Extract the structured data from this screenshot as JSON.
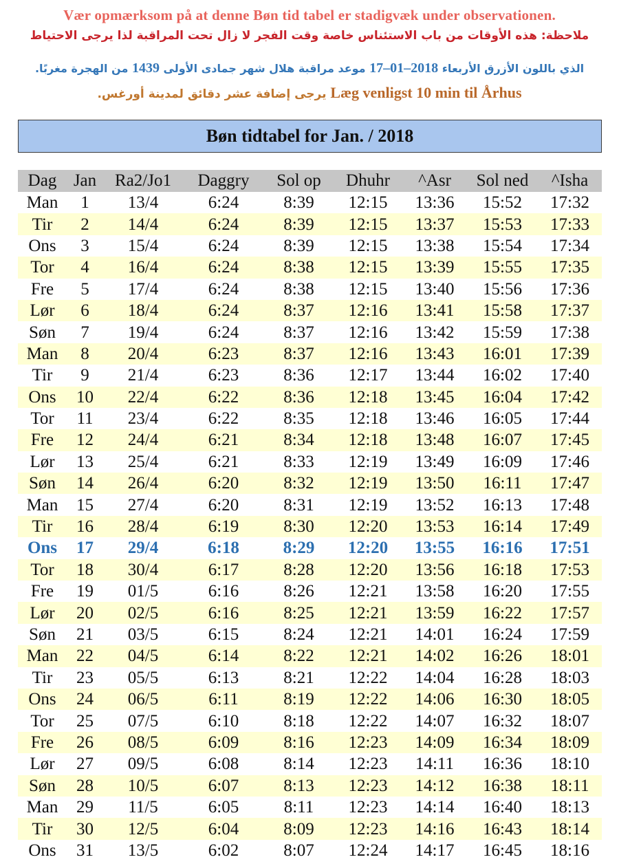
{
  "notes": {
    "danish_warning": "Vær opmærksom på at denne Bøn tid tabel er stadigvæk under observationen.",
    "arabic_warning": "ملاحظة: هذه الأوقات من باب الاستئناس خاصة وقت الفجر لا زال تحت المراقبة لذا يرجى الاحتياط",
    "moon_before": "الذي باللون الأزرق الأربعاء",
    "moon_date": "17–01–2018",
    "moon_middle": "موعد مراقبة هلال شهر جمادى الأولى",
    "moon_year": "1439",
    "moon_after": "من الهجرة مغربًا.",
    "aarhus_danish": "Læg venligst 10 min til Århus",
    "aarhus_arabic": "يرجى إضافة عشر دقائق لمدينة أورغس."
  },
  "title": "Bøn tidtabel for Jan. / 2018",
  "columns": [
    "Dag",
    "Jan",
    "Ra2/Jo1",
    "Daggry",
    "Sol op",
    "Dhuhr",
    "^Asr",
    "Sol ned",
    "^Isha"
  ],
  "highlight_color": "#2c6fb0",
  "rows": [
    [
      "Man",
      "1",
      "13/4",
      "6:24",
      "8:39",
      "12:15",
      "13:36",
      "15:52",
      "17:32"
    ],
    [
      "Tir",
      "2",
      "14/4",
      "6:24",
      "8:39",
      "12:15",
      "13:37",
      "15:53",
      "17:33"
    ],
    [
      "Ons",
      "3",
      "15/4",
      "6:24",
      "8:39",
      "12:15",
      "13:38",
      "15:54",
      "17:34"
    ],
    [
      "Tor",
      "4",
      "16/4",
      "6:24",
      "8:38",
      "12:15",
      "13:39",
      "15:55",
      "17:35"
    ],
    [
      "Fre",
      "5",
      "17/4",
      "6:24",
      "8:38",
      "12:15",
      "13:40",
      "15:56",
      "17:36"
    ],
    [
      "Lør",
      "6",
      "18/4",
      "6:24",
      "8:37",
      "12:16",
      "13:41",
      "15:58",
      "17:37"
    ],
    [
      "Søn",
      "7",
      "19/4",
      "6:24",
      "8:37",
      "12:16",
      "13:42",
      "15:59",
      "17:38"
    ],
    [
      "Man",
      "8",
      "20/4",
      "6:23",
      "8:37",
      "12:16",
      "13:43",
      "16:01",
      "17:39"
    ],
    [
      "Tir",
      "9",
      "21/4",
      "6:23",
      "8:36",
      "12:17",
      "13:44",
      "16:02",
      "17:40"
    ],
    [
      "Ons",
      "10",
      "22/4",
      "6:22",
      "8:36",
      "12:18",
      "13:45",
      "16:04",
      "17:42"
    ],
    [
      "Tor",
      "11",
      "23/4",
      "6:22",
      "8:35",
      "12:18",
      "13:46",
      "16:05",
      "17:44"
    ],
    [
      "Fre",
      "12",
      "24/4",
      "6:21",
      "8:34",
      "12:18",
      "13:48",
      "16:07",
      "17:45"
    ],
    [
      "Lør",
      "13",
      "25/4",
      "6:21",
      "8:33",
      "12:19",
      "13:49",
      "16:09",
      "17:46"
    ],
    [
      "Søn",
      "14",
      "26/4",
      "6:20",
      "8:32",
      "12:19",
      "13:50",
      "16:11",
      "17:47"
    ],
    [
      "Man",
      "15",
      "27/4",
      "6:20",
      "8:31",
      "12:19",
      "13:52",
      "16:13",
      "17:48"
    ],
    [
      "Tir",
      "16",
      "28/4",
      "6:19",
      "8:30",
      "12:20",
      "13:53",
      "16:14",
      "17:49"
    ],
    [
      "Ons",
      "17",
      "29/4",
      "6:18",
      "8:29",
      "12:20",
      "13:55",
      "16:16",
      "17:51"
    ],
    [
      "Tor",
      "18",
      "30/4",
      "6:17",
      "8:28",
      "12:20",
      "13:56",
      "16:18",
      "17:53"
    ],
    [
      "Fre",
      "19",
      "01/5",
      "6:16",
      "8:26",
      "12:21",
      "13:58",
      "16:20",
      "17:55"
    ],
    [
      "Lør",
      "20",
      "02/5",
      "6:16",
      "8:25",
      "12:21",
      "13:59",
      "16:22",
      "17:57"
    ],
    [
      "Søn",
      "21",
      "03/5",
      "6:15",
      "8:24",
      "12:21",
      "14:01",
      "16:24",
      "17:59"
    ],
    [
      "Man",
      "22",
      "04/5",
      "6:14",
      "8:22",
      "12:21",
      "14:02",
      "16:26",
      "18:01"
    ],
    [
      "Tir",
      "23",
      "05/5",
      "6:13",
      "8:21",
      "12:22",
      "14:04",
      "16:28",
      "18:03"
    ],
    [
      "Ons",
      "24",
      "06/5",
      "6:11",
      "8:19",
      "12:22",
      "14:06",
      "16:30",
      "18:05"
    ],
    [
      "Tor",
      "25",
      "07/5",
      "6:10",
      "8:18",
      "12:22",
      "14:07",
      "16:32",
      "18:07"
    ],
    [
      "Fre",
      "26",
      "08/5",
      "6:09",
      "8:16",
      "12:23",
      "14:09",
      "16:34",
      "18:09"
    ],
    [
      "Lør",
      "27",
      "09/5",
      "6:08",
      "8:14",
      "12:23",
      "14:11",
      "16:36",
      "18:10"
    ],
    [
      "Søn",
      "28",
      "10/5",
      "6:07",
      "8:13",
      "12:23",
      "14:12",
      "16:38",
      "18:11"
    ],
    [
      "Man",
      "29",
      "11/5",
      "6:05",
      "8:11",
      "12:23",
      "14:14",
      "16:40",
      "18:13"
    ],
    [
      "Tir",
      "30",
      "12/5",
      "6:04",
      "8:09",
      "12:23",
      "14:16",
      "16:43",
      "18:14"
    ],
    [
      "Ons",
      "31",
      "13/5",
      "6:02",
      "8:07",
      "12:24",
      "14:17",
      "16:45",
      "18:16"
    ]
  ],
  "highlight_row": "17"
}
